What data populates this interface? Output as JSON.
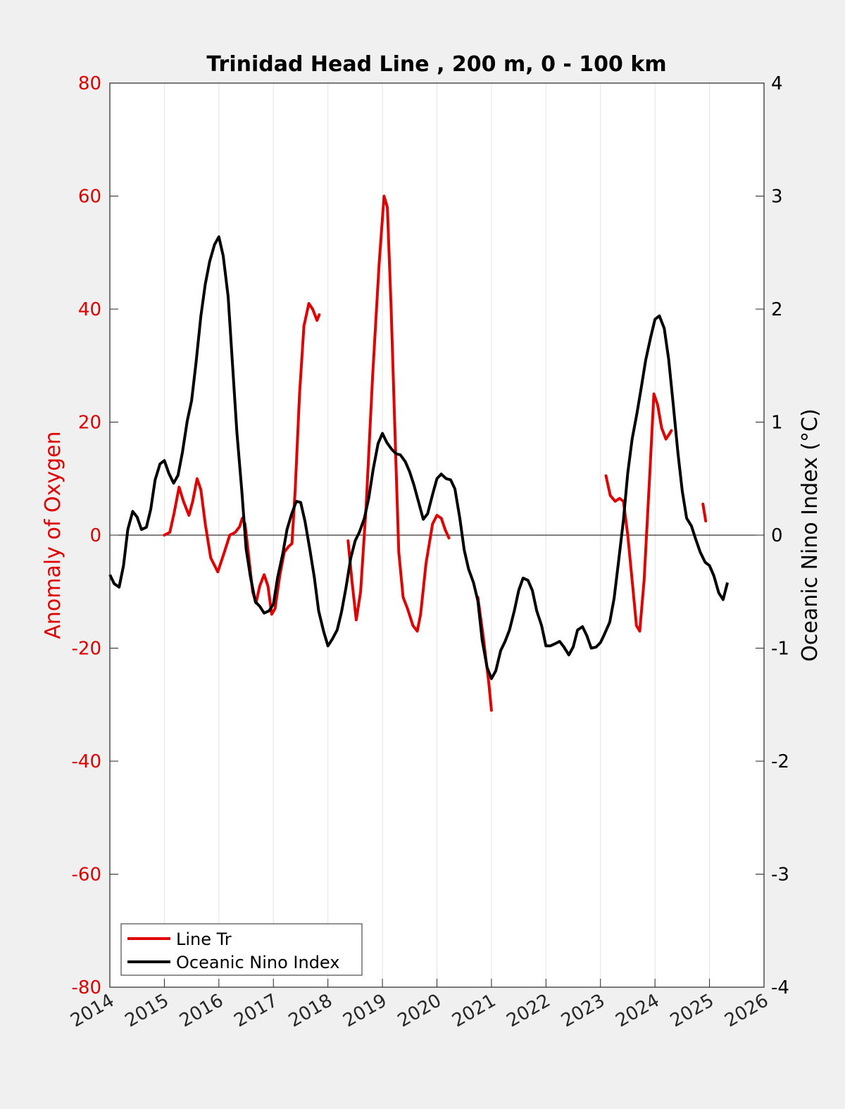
{
  "chart_data": {
    "type": "line",
    "title": "Trinidad Head Line , 200 m, 0 - 100 km",
    "xlabel": "",
    "ylabel_left": "Anomaly of Oxygen",
    "ylabel_right": "Oceanic Nino Index (°C)",
    "xlim": [
      2014,
      2026
    ],
    "ylim_left": [
      -80,
      80
    ],
    "ylim_right": [
      -4,
      4
    ],
    "x_ticks": [
      "2014",
      "2015",
      "2016",
      "2017",
      "2018",
      "2019",
      "2020",
      "2021",
      "2022",
      "2023",
      "2024",
      "2025",
      "2026"
    ],
    "y_ticks_left": [
      "80",
      "60",
      "40",
      "20",
      "0",
      "-20",
      "-40",
      "-60",
      "-80"
    ],
    "y_ticks_right": [
      "4",
      "3",
      "2",
      "1",
      "0",
      "-1",
      "-2",
      "-3",
      "-4"
    ],
    "grid": "vertical",
    "legend_position": "bottom-left",
    "colors": {
      "oxygen": "#e00000",
      "oni": "#000000",
      "left_axis": "#e00000",
      "right_axis": "#000000"
    },
    "series": [
      {
        "name": "Line Tr",
        "axis": "left",
        "color": "#e00000",
        "segments": [
          [
            [
              2015.0,
              0
            ],
            [
              2015.1,
              0.5
            ],
            [
              2015.18,
              4
            ],
            [
              2015.27,
              8.5
            ],
            [
              2015.35,
              6
            ],
            [
              2015.45,
              3.5
            ],
            [
              2015.52,
              6
            ],
            [
              2015.6,
              10
            ],
            [
              2015.67,
              8
            ],
            [
              2015.75,
              2
            ],
            [
              2015.85,
              -4
            ],
            [
              2015.98,
              -6.5
            ],
            [
              2016.1,
              -3
            ],
            [
              2016.2,
              0
            ],
            [
              2016.3,
              0.5
            ],
            [
              2016.38,
              1.5
            ],
            [
              2016.43,
              3
            ],
            [
              2016.48,
              2
            ],
            [
              2016.55,
              -4
            ],
            [
              2016.62,
              -10
            ],
            [
              2016.68,
              -12
            ],
            [
              2016.75,
              -9
            ],
            [
              2016.83,
              -7
            ],
            [
              2016.9,
              -9
            ],
            [
              2016.97,
              -14
            ],
            [
              2017.03,
              -13
            ],
            [
              2017.12,
              -7
            ],
            [
              2017.2,
              -3
            ],
            [
              2017.28,
              -2
            ],
            [
              2017.34,
              -1.5
            ],
            [
              2017.4,
              8
            ],
            [
              2017.48,
              25
            ],
            [
              2017.56,
              37
            ],
            [
              2017.65,
              41
            ],
            [
              2017.72,
              40
            ],
            [
              2017.8,
              38
            ],
            [
              2017.84,
              39
            ]
          ],
          [
            [
              2018.37,
              -1
            ],
            [
              2018.44,
              -8
            ],
            [
              2018.52,
              -15
            ],
            [
              2018.6,
              -10
            ],
            [
              2018.7,
              5
            ],
            [
              2018.82,
              28
            ],
            [
              2018.94,
              48
            ],
            [
              2019.03,
              60
            ],
            [
              2019.09,
              58
            ],
            [
              2019.16,
              40
            ],
            [
              2019.24,
              15
            ],
            [
              2019.3,
              -3
            ],
            [
              2019.38,
              -11
            ],
            [
              2019.46,
              -13
            ],
            [
              2019.56,
              -16
            ],
            [
              2019.64,
              -17
            ],
            [
              2019.7,
              -14
            ],
            [
              2019.8,
              -5
            ],
            [
              2019.92,
              2
            ],
            [
              2020.0,
              3.5
            ],
            [
              2020.08,
              3
            ],
            [
              2020.15,
              1
            ],
            [
              2020.22,
              -0.5
            ]
          ],
          [
            [
              2020.75,
              -11
            ],
            [
              2020.85,
              -18
            ],
            [
              2020.95,
              -26
            ],
            [
              2021.0,
              -31
            ]
          ],
          [
            [
              2023.1,
              10.5
            ],
            [
              2023.18,
              7
            ],
            [
              2023.27,
              6
            ],
            [
              2023.35,
              6.5
            ],
            [
              2023.42,
              6
            ],
            [
              2023.5,
              0
            ],
            [
              2023.58,
              -8
            ],
            [
              2023.66,
              -16
            ],
            [
              2023.72,
              -17
            ],
            [
              2023.8,
              -8
            ],
            [
              2023.9,
              10
            ],
            [
              2023.98,
              25
            ],
            [
              2024.05,
              23
            ],
            [
              2024.12,
              19
            ],
            [
              2024.2,
              17
            ],
            [
              2024.27,
              18
            ],
            [
              2024.3,
              18.5
            ]
          ],
          [
            [
              2024.88,
              5.5
            ],
            [
              2024.93,
              2.5
            ]
          ]
        ]
      },
      {
        "name": "Oceanic Nino Index",
        "axis": "right",
        "color": "#000000",
        "values": [
          [
            2014.0,
            -0.35
          ],
          [
            2014.08,
            -0.43
          ],
          [
            2014.17,
            -0.46
          ],
          [
            2014.25,
            -0.27
          ],
          [
            2014.33,
            0.05
          ],
          [
            2014.42,
            0.21
          ],
          [
            2014.5,
            0.16
          ],
          [
            2014.58,
            0.05
          ],
          [
            2014.67,
            0.07
          ],
          [
            2014.75,
            0.23
          ],
          [
            2014.83,
            0.49
          ],
          [
            2014.92,
            0.63
          ],
          [
            2015.0,
            0.66
          ],
          [
            2015.08,
            0.55
          ],
          [
            2015.17,
            0.46
          ],
          [
            2015.25,
            0.53
          ],
          [
            2015.33,
            0.73
          ],
          [
            2015.42,
            1.01
          ],
          [
            2015.5,
            1.19
          ],
          [
            2015.58,
            1.52
          ],
          [
            2015.67,
            1.94
          ],
          [
            2015.75,
            2.22
          ],
          [
            2015.83,
            2.42
          ],
          [
            2015.92,
            2.57
          ],
          [
            2016.0,
            2.64
          ],
          [
            2016.08,
            2.47
          ],
          [
            2016.17,
            2.11
          ],
          [
            2016.25,
            1.51
          ],
          [
            2016.33,
            0.91
          ],
          [
            2016.42,
            0.4
          ],
          [
            2016.5,
            -0.12
          ],
          [
            2016.58,
            -0.37
          ],
          [
            2016.67,
            -0.59
          ],
          [
            2016.75,
            -0.63
          ],
          [
            2016.83,
            -0.69
          ],
          [
            2016.92,
            -0.67
          ],
          [
            2017.0,
            -0.61
          ],
          [
            2017.08,
            -0.37
          ],
          [
            2017.17,
            -0.17
          ],
          [
            2017.25,
            0.05
          ],
          [
            2017.33,
            0.18
          ],
          [
            2017.42,
            0.3
          ],
          [
            2017.5,
            0.29
          ],
          [
            2017.58,
            0.12
          ],
          [
            2017.67,
            -0.13
          ],
          [
            2017.75,
            -0.37
          ],
          [
            2017.83,
            -0.67
          ],
          [
            2017.92,
            -0.85
          ],
          [
            2018.0,
            -0.98
          ],
          [
            2018.08,
            -0.92
          ],
          [
            2018.17,
            -0.84
          ],
          [
            2018.25,
            -0.68
          ],
          [
            2018.33,
            -0.47
          ],
          [
            2018.42,
            -0.2
          ],
          [
            2018.5,
            -0.05
          ],
          [
            2018.58,
            0.03
          ],
          [
            2018.67,
            0.15
          ],
          [
            2018.75,
            0.33
          ],
          [
            2018.83,
            0.58
          ],
          [
            2018.92,
            0.81
          ],
          [
            2019.0,
            0.9
          ],
          [
            2019.08,
            0.82
          ],
          [
            2019.17,
            0.76
          ],
          [
            2019.25,
            0.72
          ],
          [
            2019.33,
            0.71
          ],
          [
            2019.42,
            0.65
          ],
          [
            2019.5,
            0.56
          ],
          [
            2019.58,
            0.44
          ],
          [
            2019.67,
            0.28
          ],
          [
            2019.75,
            0.14
          ],
          [
            2019.83,
            0.19
          ],
          [
            2019.92,
            0.36
          ],
          [
            2020.0,
            0.5
          ],
          [
            2020.08,
            0.54
          ],
          [
            2020.17,
            0.5
          ],
          [
            2020.25,
            0.49
          ],
          [
            2020.33,
            0.41
          ],
          [
            2020.42,
            0.15
          ],
          [
            2020.5,
            -0.13
          ],
          [
            2020.58,
            -0.3
          ],
          [
            2020.67,
            -0.42
          ],
          [
            2020.75,
            -0.58
          ],
          [
            2020.83,
            -0.93
          ],
          [
            2020.92,
            -1.17
          ],
          [
            2021.0,
            -1.27
          ],
          [
            2021.08,
            -1.2
          ],
          [
            2021.17,
            -1.02
          ],
          [
            2021.25,
            -0.94
          ],
          [
            2021.33,
            -0.84
          ],
          [
            2021.42,
            -0.67
          ],
          [
            2021.5,
            -0.49
          ],
          [
            2021.58,
            -0.38
          ],
          [
            2021.67,
            -0.4
          ],
          [
            2021.75,
            -0.49
          ],
          [
            2021.83,
            -0.67
          ],
          [
            2021.92,
            -0.8
          ],
          [
            2022.0,
            -0.98
          ],
          [
            2022.08,
            -0.98
          ],
          [
            2022.17,
            -0.96
          ],
          [
            2022.25,
            -0.94
          ],
          [
            2022.33,
            -0.99
          ],
          [
            2022.42,
            -1.06
          ],
          [
            2022.5,
            -0.99
          ],
          [
            2022.58,
            -0.84
          ],
          [
            2022.67,
            -0.81
          ],
          [
            2022.75,
            -0.89
          ],
          [
            2022.83,
            -1.0
          ],
          [
            2022.92,
            -0.99
          ],
          [
            2023.0,
            -0.95
          ],
          [
            2023.08,
            -0.87
          ],
          [
            2023.17,
            -0.77
          ],
          [
            2023.25,
            -0.56
          ],
          [
            2023.33,
            -0.24
          ],
          [
            2023.42,
            0.13
          ],
          [
            2023.5,
            0.55
          ],
          [
            2023.58,
            0.85
          ],
          [
            2023.67,
            1.08
          ],
          [
            2023.75,
            1.31
          ],
          [
            2023.83,
            1.55
          ],
          [
            2023.92,
            1.75
          ],
          [
            2024.0,
            1.91
          ],
          [
            2024.08,
            1.94
          ],
          [
            2024.17,
            1.83
          ],
          [
            2024.25,
            1.56
          ],
          [
            2024.33,
            1.18
          ],
          [
            2024.42,
            0.73
          ],
          [
            2024.5,
            0.39
          ],
          [
            2024.58,
            0.15
          ],
          [
            2024.67,
            0.08
          ],
          [
            2024.75,
            -0.04
          ],
          [
            2024.83,
            -0.15
          ],
          [
            2024.92,
            -0.24
          ],
          [
            2025.0,
            -0.27
          ],
          [
            2025.08,
            -0.36
          ],
          [
            2025.17,
            -0.51
          ],
          [
            2025.25,
            -0.57
          ],
          [
            2025.33,
            -0.42
          ]
        ]
      }
    ]
  }
}
